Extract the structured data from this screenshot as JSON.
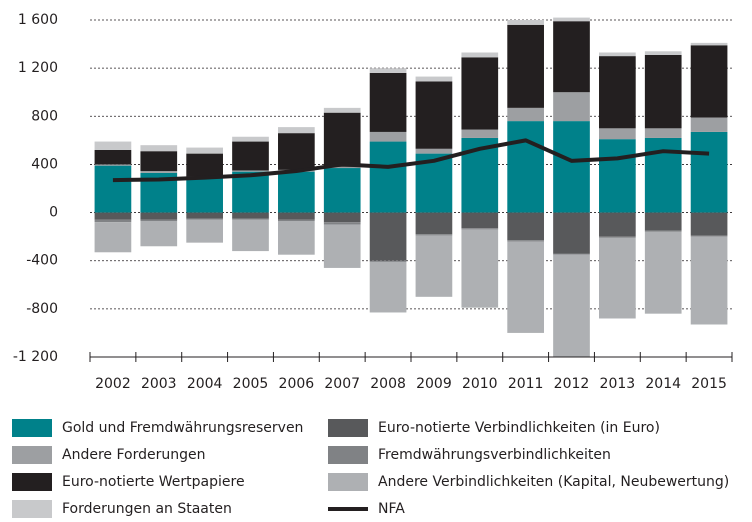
{
  "chart_data": {
    "type": "bar",
    "stacked": true,
    "grid": true,
    "categories": [
      "2002",
      "2003",
      "2004",
      "2005",
      "2006",
      "2007",
      "2008",
      "2009",
      "2010",
      "2011",
      "2012",
      "2013",
      "2014",
      "2015"
    ],
    "ylim": [
      -1200,
      1600
    ],
    "yticks": [
      {
        "value": -1200,
        "label": "-1 200"
      },
      -800,
      -400,
      0,
      400,
      800,
      {
        "value": 1200,
        "label": "1 200"
      },
      {
        "value": 1600,
        "label": "1 600"
      }
    ],
    "series": [
      {
        "name": "Gold und Fremdwährungsreserven",
        "color": "#00818a",
        "values": [
          390,
          330,
          290,
          340,
          340,
          370,
          590,
          490,
          620,
          760,
          760,
          610,
          620,
          670
        ]
      },
      {
        "name": "Andere Forderungen",
        "color": "#9d9fa2",
        "values": [
          10,
          15,
          10,
          10,
          15,
          10,
          80,
          40,
          70,
          110,
          240,
          90,
          80,
          120
        ]
      },
      {
        "name": "Euro-notierte Wertpapiere",
        "color": "#231f20",
        "values": [
          120,
          165,
          190,
          240,
          305,
          450,
          490,
          560,
          600,
          690,
          590,
          600,
          610,
          600
        ]
      },
      {
        "name": "Forderungen an Staaten",
        "color": "#c8c9cb",
        "values": [
          70,
          50,
          50,
          40,
          50,
          40,
          40,
          40,
          40,
          40,
          30,
          30,
          30,
          20
        ]
      },
      {
        "name": "Euro-notierte Verbindlichkeiten (in Euro)",
        "color": "#58595b",
        "values": [
          -60,
          -60,
          -50,
          -50,
          -60,
          -80,
          -400,
          -180,
          -130,
          -230,
          -340,
          -200,
          -150,
          -190
        ]
      },
      {
        "name": "Fremdwährungsverbindlichkeiten",
        "color": "#808285",
        "values": [
          -20,
          -10,
          -10,
          -10,
          -10,
          -20,
          -10,
          -10,
          -10,
          -10,
          -10,
          -10,
          -10,
          -10
        ]
      },
      {
        "name": "Andere Verbindlichkeiten (Kapital, Neubewertung)",
        "color": "#aeb0b3",
        "values": [
          -250,
          -210,
          -190,
          -260,
          -280,
          -360,
          -420,
          -510,
          -650,
          -760,
          -850,
          -670,
          -680,
          -730
        ]
      },
      {
        "name": "NFA",
        "color": "#231f20",
        "type": "line",
        "values": [
          270,
          275,
          290,
          310,
          345,
          400,
          380,
          430,
          530,
          600,
          430,
          450,
          510,
          490
        ]
      }
    ]
  }
}
